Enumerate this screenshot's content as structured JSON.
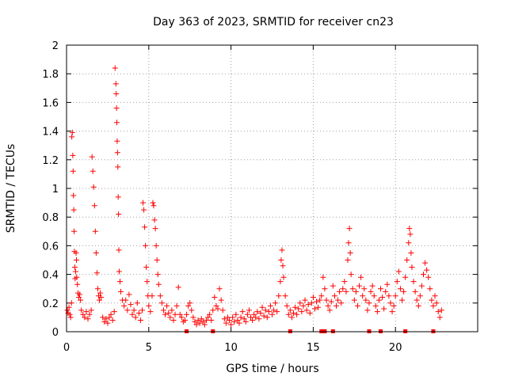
{
  "chart_data": {
    "type": "scatter",
    "title": "Day 363 of 2023, SRMTID for receiver cn23",
    "xlabel": "GPS time / hours",
    "ylabel": "SRMTID / TECUs",
    "xlim": [
      0,
      25
    ],
    "ylim": [
      0,
      2
    ],
    "xticks": [
      0,
      5,
      10,
      15,
      20
    ],
    "xtick_labels": [
      "0",
      "5",
      "10",
      "15",
      "20"
    ],
    "yticks": [
      0,
      0.2,
      0.4,
      0.6,
      0.8,
      1,
      1.2,
      1.4,
      1.6,
      1.8,
      2
    ],
    "ytick_labels": [
      "0",
      "0.2",
      "0.4",
      "0.6",
      "0.8",
      "1",
      "1.2",
      "1.4",
      "1.6",
      "1.8",
      "2"
    ],
    "grid": true,
    "marker": "plus",
    "color": "#ff0000",
    "series": [
      {
        "name": "SRMTID",
        "points": [
          [
            0.05,
            0.15
          ],
          [
            0.1,
            0.13
          ],
          [
            0.15,
            0.17
          ],
          [
            0.2,
            0.12
          ],
          [
            0.25,
            0.1
          ],
          [
            0.3,
            0.2
          ],
          [
            0.32,
            1.36
          ],
          [
            0.35,
            1.39
          ],
          [
            0.38,
            1.23
          ],
          [
            0.4,
            1.12
          ],
          [
            0.42,
            0.95
          ],
          [
            0.44,
            0.85
          ],
          [
            0.46,
            0.7
          ],
          [
            0.48,
            0.56
          ],
          [
            0.5,
            0.45
          ],
          [
            0.52,
            0.37
          ],
          [
            0.55,
            0.42
          ],
          [
            0.58,
            0.55
          ],
          [
            0.6,
            0.5
          ],
          [
            0.62,
            0.38
          ],
          [
            0.66,
            0.33
          ],
          [
            0.7,
            0.27
          ],
          [
            0.75,
            0.24
          ],
          [
            0.8,
            0.26
          ],
          [
            0.85,
            0.22
          ],
          [
            0.9,
            0.15
          ],
          [
            1.0,
            0.12
          ],
          [
            1.1,
            0.1
          ],
          [
            1.2,
            0.14
          ],
          [
            1.3,
            0.09
          ],
          [
            1.4,
            0.12
          ],
          [
            1.5,
            0.15
          ],
          [
            1.55,
            1.22
          ],
          [
            1.6,
            1.12
          ],
          [
            1.65,
            1.01
          ],
          [
            1.7,
            0.88
          ],
          [
            1.75,
            0.7
          ],
          [
            1.8,
            0.55
          ],
          [
            1.85,
            0.41
          ],
          [
            1.9,
            0.3
          ],
          [
            1.95,
            0.25
          ],
          [
            2.0,
            0.22
          ],
          [
            2.05,
            0.27
          ],
          [
            2.1,
            0.24
          ],
          [
            2.2,
            0.1
          ],
          [
            2.3,
            0.07
          ],
          [
            2.4,
            0.09
          ],
          [
            2.5,
            0.06
          ],
          [
            2.6,
            0.1
          ],
          [
            2.7,
            0.12
          ],
          [
            2.8,
            0.08
          ],
          [
            2.9,
            0.14
          ],
          [
            2.95,
            1.84
          ],
          [
            3.0,
            1.73
          ],
          [
            3.02,
            1.66
          ],
          [
            3.04,
            1.56
          ],
          [
            3.06,
            1.46
          ],
          [
            3.08,
            1.33
          ],
          [
            3.1,
            1.25
          ],
          [
            3.12,
            1.15
          ],
          [
            3.14,
            0.94
          ],
          [
            3.16,
            0.82
          ],
          [
            3.18,
            0.57
          ],
          [
            3.2,
            0.42
          ],
          [
            3.25,
            0.35
          ],
          [
            3.3,
            0.28
          ],
          [
            3.4,
            0.22
          ],
          [
            3.5,
            0.18
          ],
          [
            3.6,
            0.22
          ],
          [
            3.7,
            0.15
          ],
          [
            3.8,
            0.26
          ],
          [
            3.9,
            0.19
          ],
          [
            4.0,
            0.12
          ],
          [
            4.1,
            0.15
          ],
          [
            4.2,
            0.1
          ],
          [
            4.3,
            0.2
          ],
          [
            4.4,
            0.13
          ],
          [
            4.5,
            0.08
          ],
          [
            4.6,
            0.15
          ],
          [
            4.65,
            0.9
          ],
          [
            4.7,
            0.85
          ],
          [
            4.75,
            0.73
          ],
          [
            4.8,
            0.6
          ],
          [
            4.85,
            0.45
          ],
          [
            4.9,
            0.35
          ],
          [
            4.95,
            0.25
          ],
          [
            5.0,
            0.18
          ],
          [
            5.1,
            0.14
          ],
          [
            5.2,
            0.25
          ],
          [
            5.25,
            0.9
          ],
          [
            5.3,
            0.88
          ],
          [
            5.35,
            0.78
          ],
          [
            5.4,
            0.72
          ],
          [
            5.45,
            0.6
          ],
          [
            5.5,
            0.5
          ],
          [
            5.55,
            0.4
          ],
          [
            5.6,
            0.33
          ],
          [
            5.7,
            0.25
          ],
          [
            5.8,
            0.2
          ],
          [
            5.9,
            0.15
          ],
          [
            6.0,
            0.12
          ],
          [
            6.1,
            0.18
          ],
          [
            6.2,
            0.13
          ],
          [
            6.3,
            0.1
          ],
          [
            6.4,
            0.15
          ],
          [
            6.5,
            0.08
          ],
          [
            6.6,
            0.12
          ],
          [
            6.7,
            0.18
          ],
          [
            6.8,
            0.31
          ],
          [
            6.9,
            0.12
          ],
          [
            7.0,
            0.1
          ],
          [
            7.1,
            0.07
          ],
          [
            7.2,
            0.08
          ],
          [
            7.3,
            0.12
          ],
          [
            7.4,
            0.18
          ],
          [
            7.5,
            0.2
          ],
          [
            7.6,
            0.15
          ],
          [
            7.7,
            0.1
          ],
          [
            7.8,
            0.07
          ],
          [
            7.9,
            0.05
          ],
          [
            8.0,
            0.08
          ],
          [
            8.1,
            0.06
          ],
          [
            8.2,
            0.09
          ],
          [
            8.3,
            0.07
          ],
          [
            8.4,
            0.05
          ],
          [
            8.5,
            0.08
          ],
          [
            8.6,
            0.1
          ],
          [
            8.7,
            0.12
          ],
          [
            8.8,
            0.08
          ],
          [
            8.9,
            0.15
          ],
          [
            9.0,
            0.24
          ],
          [
            9.1,
            0.18
          ],
          [
            9.2,
            0.16
          ],
          [
            9.3,
            0.3
          ],
          [
            9.4,
            0.22
          ],
          [
            9.5,
            0.15
          ],
          [
            9.6,
            0.09
          ],
          [
            9.7,
            0.06
          ],
          [
            9.8,
            0.1
          ],
          [
            9.9,
            0.08
          ],
          [
            10.0,
            0.05
          ],
          [
            10.1,
            0.1
          ],
          [
            10.2,
            0.07
          ],
          [
            10.3,
            0.12
          ],
          [
            10.4,
            0.08
          ],
          [
            10.5,
            0.06
          ],
          [
            10.6,
            0.1
          ],
          [
            10.7,
            0.14
          ],
          [
            10.8,
            0.09
          ],
          [
            10.9,
            0.07
          ],
          [
            11.0,
            0.12
          ],
          [
            11.1,
            0.15
          ],
          [
            11.2,
            0.1
          ],
          [
            11.3,
            0.08
          ],
          [
            11.4,
            0.12
          ],
          [
            11.5,
            0.1
          ],
          [
            11.6,
            0.14
          ],
          [
            11.7,
            0.09
          ],
          [
            11.8,
            0.13
          ],
          [
            11.9,
            0.17
          ],
          [
            12.0,
            0.11
          ],
          [
            12.1,
            0.15
          ],
          [
            12.2,
            0.1
          ],
          [
            12.3,
            0.14
          ],
          [
            12.4,
            0.18
          ],
          [
            12.5,
            0.12
          ],
          [
            12.6,
            0.15
          ],
          [
            12.7,
            0.2
          ],
          [
            12.8,
            0.14
          ],
          [
            12.9,
            0.25
          ],
          [
            13.0,
            0.35
          ],
          [
            13.05,
            0.5
          ],
          [
            13.1,
            0.57
          ],
          [
            13.15,
            0.46
          ],
          [
            13.2,
            0.38
          ],
          [
            13.3,
            0.25
          ],
          [
            13.4,
            0.18
          ],
          [
            13.5,
            0.12
          ],
          [
            13.6,
            0.15
          ],
          [
            13.7,
            0.1
          ],
          [
            13.8,
            0.13
          ],
          [
            13.9,
            0.17
          ],
          [
            14.0,
            0.12
          ],
          [
            14.1,
            0.16
          ],
          [
            14.2,
            0.2
          ],
          [
            14.3,
            0.14
          ],
          [
            14.4,
            0.18
          ],
          [
            14.5,
            0.22
          ],
          [
            14.6,
            0.15
          ],
          [
            14.7,
            0.19
          ],
          [
            14.8,
            0.13
          ],
          [
            14.9,
            0.2
          ],
          [
            15.0,
            0.24
          ],
          [
            15.1,
            0.16
          ],
          [
            15.2,
            0.21
          ],
          [
            15.3,
            0.17
          ],
          [
            15.4,
            0.22
          ],
          [
            15.5,
            0.25
          ],
          [
            15.6,
            0.38
          ],
          [
            15.7,
            0.3
          ],
          [
            15.8,
            0.22
          ],
          [
            15.9,
            0.18
          ],
          [
            16.0,
            0.15
          ],
          [
            16.1,
            0.21
          ],
          [
            16.2,
            0.32
          ],
          [
            16.3,
            0.25
          ],
          [
            16.4,
            0.18
          ],
          [
            16.5,
            0.22
          ],
          [
            16.6,
            0.28
          ],
          [
            16.7,
            0.2
          ],
          [
            16.8,
            0.3
          ],
          [
            16.9,
            0.35
          ],
          [
            17.0,
            0.28
          ],
          [
            17.1,
            0.5
          ],
          [
            17.15,
            0.62
          ],
          [
            17.2,
            0.72
          ],
          [
            17.25,
            0.55
          ],
          [
            17.3,
            0.4
          ],
          [
            17.4,
            0.3
          ],
          [
            17.5,
            0.22
          ],
          [
            17.6,
            0.28
          ],
          [
            17.7,
            0.18
          ],
          [
            17.8,
            0.32
          ],
          [
            17.9,
            0.38
          ],
          [
            18.0,
            0.25
          ],
          [
            18.1,
            0.3
          ],
          [
            18.2,
            0.22
          ],
          [
            18.3,
            0.15
          ],
          [
            18.4,
            0.2
          ],
          [
            18.5,
            0.28
          ],
          [
            18.6,
            0.32
          ],
          [
            18.7,
            0.25
          ],
          [
            18.8,
            0.18
          ],
          [
            18.9,
            0.14
          ],
          [
            19.0,
            0.22
          ],
          [
            19.1,
            0.3
          ],
          [
            19.2,
            0.24
          ],
          [
            19.3,
            0.16
          ],
          [
            19.4,
            0.28
          ],
          [
            19.5,
            0.33
          ],
          [
            19.6,
            0.25
          ],
          [
            19.7,
            0.2
          ],
          [
            19.8,
            0.14
          ],
          [
            19.9,
            0.18
          ],
          [
            20.0,
            0.25
          ],
          [
            20.1,
            0.35
          ],
          [
            20.2,
            0.42
          ],
          [
            20.3,
            0.3
          ],
          [
            20.4,
            0.22
          ],
          [
            20.5,
            0.28
          ],
          [
            20.6,
            0.38
          ],
          [
            20.7,
            0.5
          ],
          [
            20.8,
            0.62
          ],
          [
            20.85,
            0.72
          ],
          [
            20.9,
            0.68
          ],
          [
            20.95,
            0.55
          ],
          [
            21.0,
            0.45
          ],
          [
            21.1,
            0.35
          ],
          [
            21.2,
            0.28
          ],
          [
            21.3,
            0.22
          ],
          [
            21.4,
            0.18
          ],
          [
            21.5,
            0.25
          ],
          [
            21.6,
            0.32
          ],
          [
            21.7,
            0.4
          ],
          [
            21.8,
            0.48
          ],
          [
            21.9,
            0.43
          ],
          [
            22.0,
            0.38
          ],
          [
            22.1,
            0.3
          ],
          [
            22.2,
            0.22
          ],
          [
            22.3,
            0.18
          ],
          [
            22.4,
            0.25
          ],
          [
            22.5,
            0.2
          ],
          [
            22.6,
            0.14
          ],
          [
            22.7,
            0.1
          ],
          [
            22.8,
            0.15
          ]
        ]
      }
    ],
    "gap_markers_x": [
      7.3,
      8.9,
      13.6,
      15.5,
      15.7,
      16.2,
      18.4,
      19.1,
      20.6,
      22.3
    ]
  }
}
